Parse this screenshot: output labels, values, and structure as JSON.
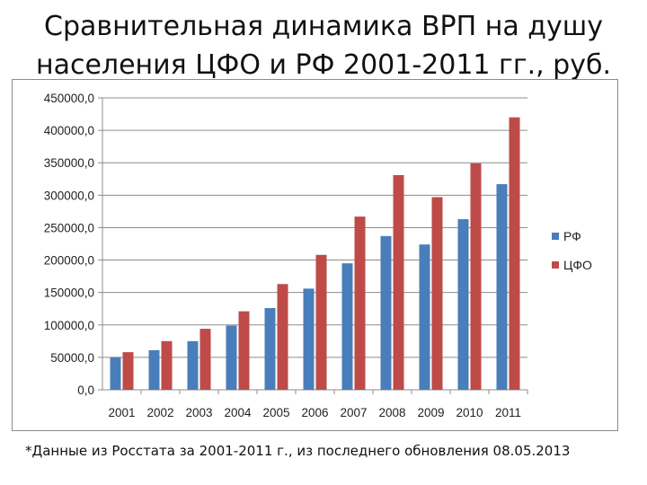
{
  "title": {
    "line1": "Сравнительная динамика ВРП на душу",
    "line2": "населения ЦФО и РФ 2001-2011 гг., руб."
  },
  "footnote": "*Данные из Росстата за 2001-2011 г., из последнего обновления 08.05.2013",
  "chart_data": {
    "type": "bar",
    "categories": [
      "2001",
      "2002",
      "2003",
      "2004",
      "2005",
      "2006",
      "2007",
      "2008",
      "2009",
      "2010",
      "2011"
    ],
    "series": [
      {
        "name": "РФ",
        "color": "#4a7ebb",
        "values": [
          50000,
          61000,
          75000,
          99000,
          126000,
          156000,
          195000,
          237000,
          224000,
          263000,
          317000
        ]
      },
      {
        "name": "ЦФО",
        "color": "#be4b48",
        "values": [
          58000,
          75000,
          94000,
          121000,
          163000,
          208000,
          267000,
          331000,
          297000,
          349000,
          420000
        ]
      }
    ],
    "y_ticks": [
      "0,0",
      "50000,0",
      "100000,0",
      "150000,0",
      "200000,0",
      "250000,0",
      "300000,0",
      "350000,0",
      "400000,0",
      "450000,0"
    ],
    "ylim": [
      0,
      450000
    ],
    "grid": true,
    "legend_position": "right"
  }
}
